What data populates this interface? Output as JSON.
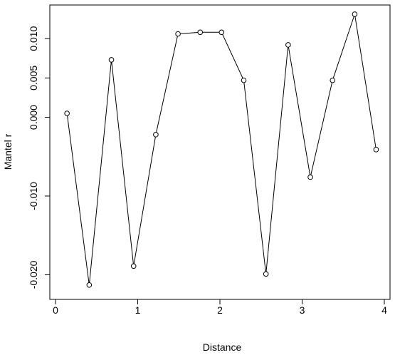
{
  "chart_data": {
    "type": "line",
    "title": "",
    "xlabel": "Distance",
    "ylabel": "Mantel r",
    "xlim": [
      0,
      4
    ],
    "ylim": [
      -0.0215,
      0.013
    ],
    "xticks": [
      0,
      1,
      2,
      3,
      4
    ],
    "xtick_labels": [
      "0",
      "1",
      "2",
      "3",
      "4"
    ],
    "yticks": [
      -0.02,
      -0.01,
      0.0,
      0.005,
      0.01
    ],
    "ytick_labels": [
      "-0.020",
      "-0.010",
      "0.000",
      "0.005",
      "0.010"
    ],
    "grid": false,
    "series": [
      {
        "x": [
          0.14,
          0.41,
          0.68,
          0.95,
          1.22,
          1.49,
          1.76,
          2.02,
          2.29,
          2.56,
          2.83,
          3.1,
          3.37,
          3.64,
          3.9
        ],
        "y": [
          0.0005,
          -0.0213,
          0.0073,
          -0.0189,
          -0.0022,
          0.0106,
          0.0108,
          0.0108,
          0.0047,
          -0.0199,
          0.0092,
          -0.0076,
          0.0047,
          0.0131,
          -0.0041
        ],
        "marker": "open-circle",
        "color": "#000000"
      }
    ]
  }
}
